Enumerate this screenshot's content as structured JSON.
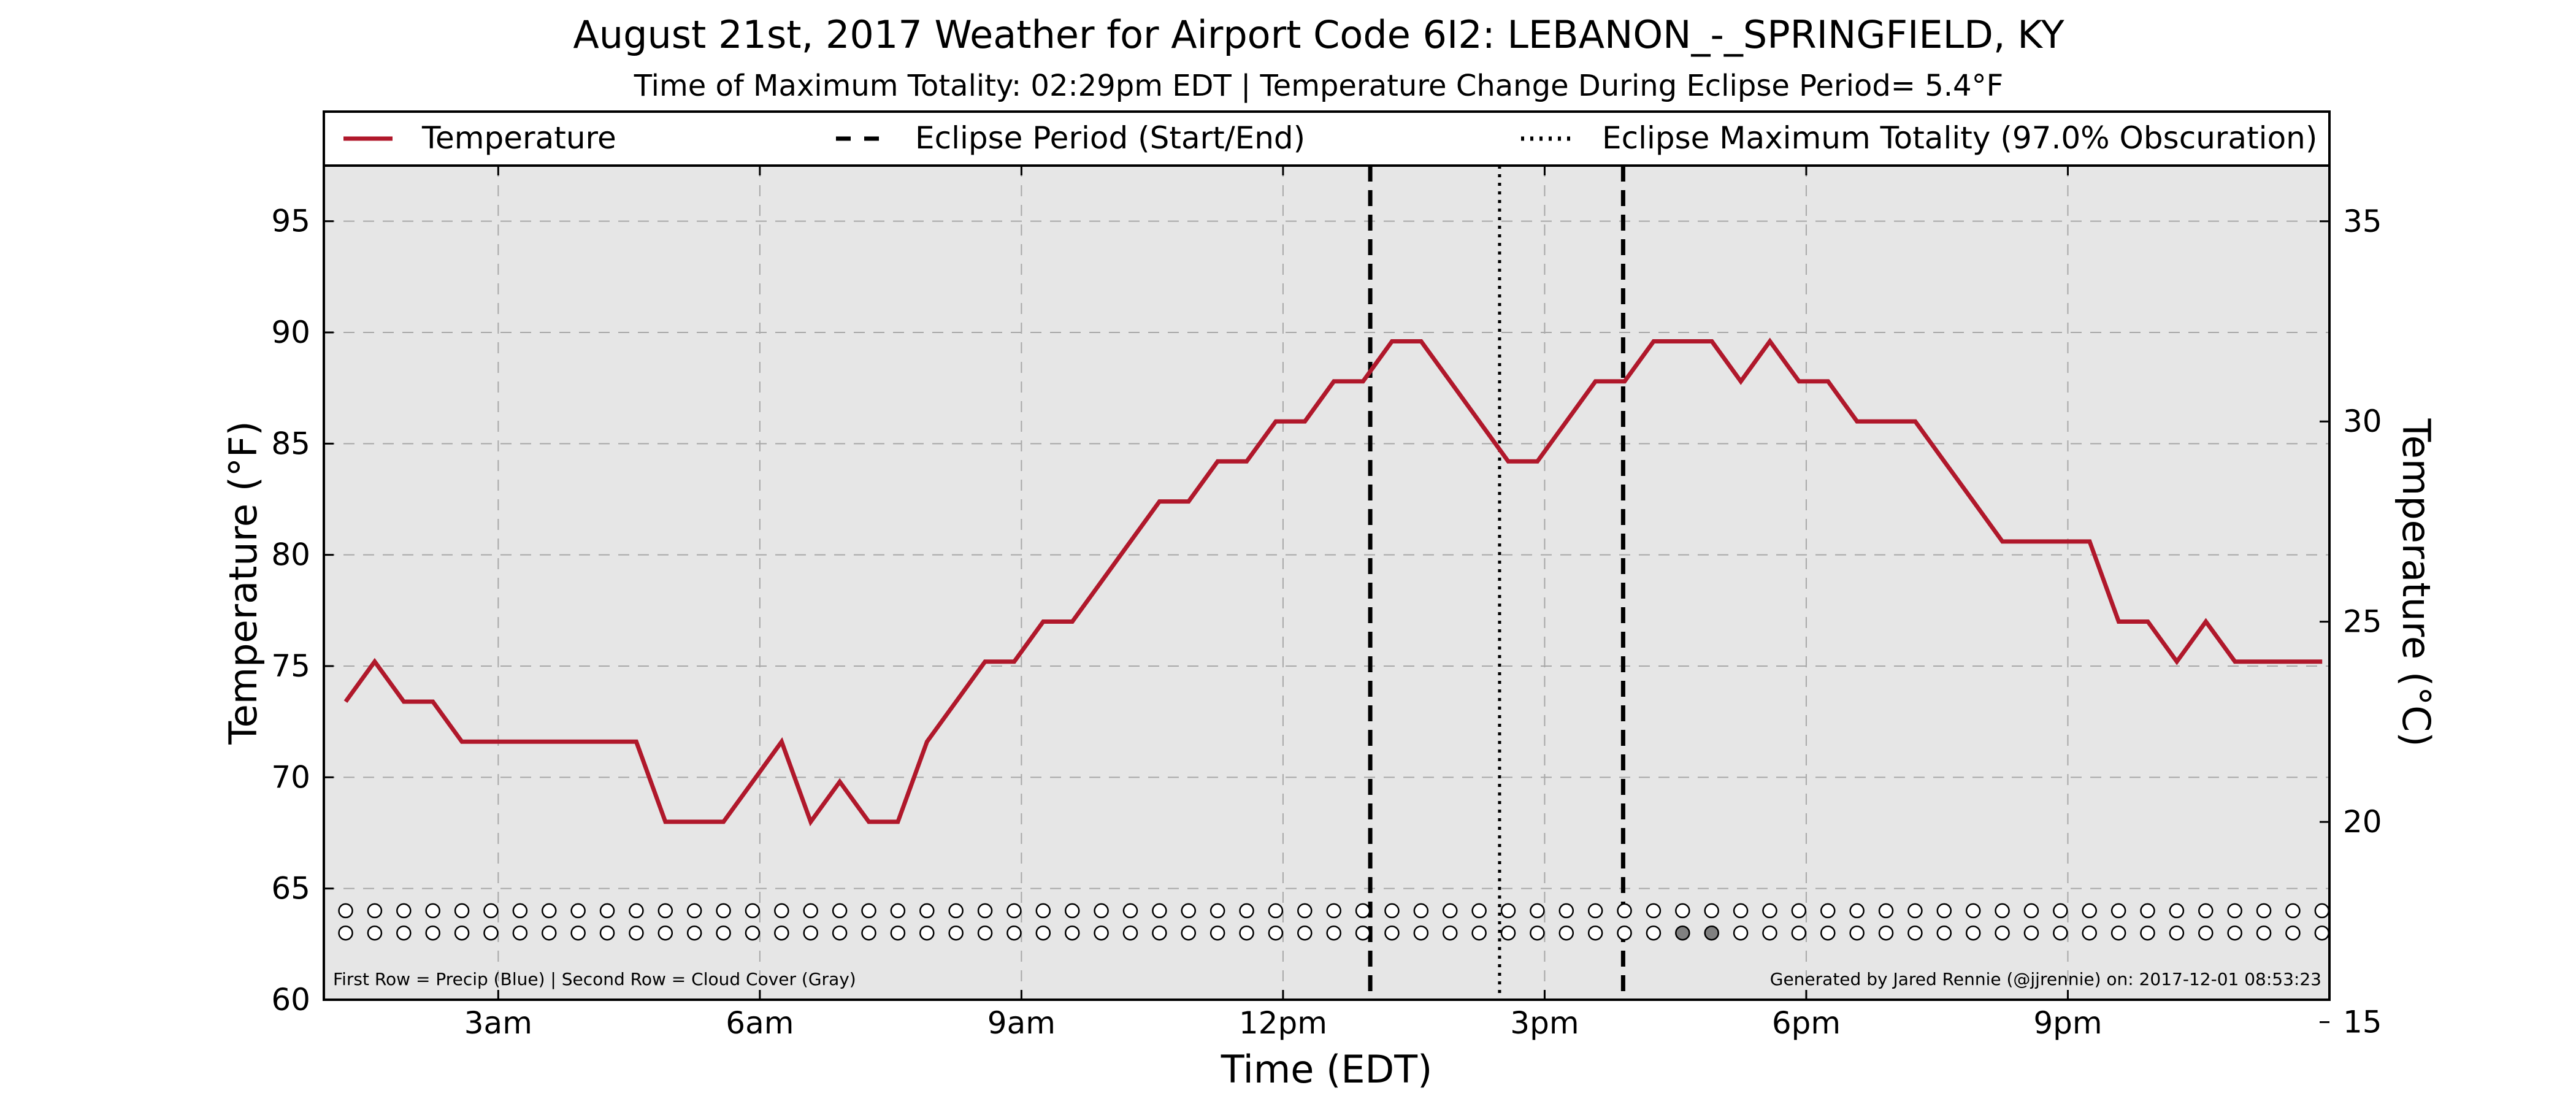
{
  "chart_data": {
    "type": "line",
    "title": "August 21st, 2017 Weather for Airport Code 6I2: LEBANON_-_SPRINGFIELD, KY",
    "subtitle": "Time of Maximum Totality: 02:29pm EDT | Temperature Change During Eclipse Period= 5.4°F",
    "xlabel": "Time (EDT)",
    "ylabel": "Temperature (°F)",
    "ylabel_right": "Temperature (°C)",
    "xlim": [
      1.0,
      24.0
    ],
    "ylim": [
      60,
      97.5
    ],
    "ylim_right": [
      15.56,
      36.39
    ],
    "x_ticks": [
      {
        "x": 3,
        "label": "3am"
      },
      {
        "x": 6,
        "label": "6am"
      },
      {
        "x": 9,
        "label": "9am"
      },
      {
        "x": 12,
        "label": "12pm"
      },
      {
        "x": 15,
        "label": "3pm"
      },
      {
        "x": 18,
        "label": "6pm"
      },
      {
        "x": 21,
        "label": "9pm"
      }
    ],
    "y_ticks": [
      60,
      65,
      70,
      75,
      80,
      85,
      90,
      95
    ],
    "y_ticks_right": [
      15,
      20,
      25,
      30,
      35
    ],
    "grid": true,
    "legend_position": "top",
    "legend": [
      {
        "label": "Temperature",
        "style": "solid"
      },
      {
        "label": "Eclipse Period (Start/End)",
        "style": "dashed"
      },
      {
        "label": "Eclipse Maximum Totality (97.0% Obscuration)",
        "style": "dotted"
      }
    ],
    "series": [
      {
        "name": "Temperature",
        "color": "#b0182b",
        "x": [
          1.25,
          1.583,
          1.917,
          2.25,
          2.583,
          2.917,
          3.25,
          3.583,
          3.917,
          4.25,
          4.583,
          4.917,
          5.25,
          5.583,
          5.917,
          6.25,
          6.583,
          6.917,
          7.25,
          7.583,
          7.917,
          8.25,
          8.583,
          8.917,
          9.25,
          9.583,
          9.917,
          10.25,
          10.583,
          10.917,
          11.25,
          11.583,
          11.917,
          12.25,
          12.583,
          12.917,
          13.25,
          13.583,
          13.917,
          14.25,
          14.583,
          14.917,
          15.25,
          15.583,
          15.917,
          16.25,
          16.583,
          16.917,
          17.25,
          17.583,
          17.917,
          18.25,
          18.583,
          18.917,
          19.25,
          19.583,
          19.917,
          20.25,
          20.583,
          20.917,
          21.25,
          21.583,
          21.917,
          22.25,
          22.583,
          22.917,
          23.25,
          23.583,
          23.917
        ],
        "values": [
          73.4,
          75.2,
          73.4,
          73.4,
          71.6,
          71.6,
          71.6,
          71.6,
          71.6,
          71.6,
          71.6,
          68.0,
          68.0,
          68.0,
          69.8,
          71.6,
          68.0,
          69.8,
          68.0,
          68.0,
          71.6,
          73.4,
          75.2,
          75.2,
          77.0,
          77.0,
          78.8,
          80.6,
          82.4,
          82.4,
          84.2,
          84.2,
          86.0,
          86.0,
          87.8,
          87.8,
          89.6,
          89.6,
          87.8,
          86.0,
          84.2,
          84.2,
          86.0,
          87.8,
          87.8,
          89.6,
          89.6,
          89.6,
          87.8,
          89.6,
          87.8,
          87.8,
          86.0,
          86.0,
          86.0,
          84.2,
          82.4,
          80.6,
          80.6,
          80.6,
          80.6,
          77.0,
          77.0,
          75.2,
          77.0,
          75.2,
          75.2,
          75.2,
          75.2
        ]
      }
    ],
    "eclipse_start": 13.0,
    "eclipse_end": 15.9,
    "eclipse_max": 14.483,
    "indicator_rows": {
      "y": [
        64,
        63
      ],
      "x_start": 1.25,
      "x_step": 0.3333,
      "count": 69,
      "filled_cloud_x": [
        16.583,
        16.917
      ]
    },
    "footnote_left": "First Row = Precip (Blue) | Second Row = Cloud Cover (Gray)",
    "footnote_right": "Generated by Jared Rennie (@jjrennie) on: 2017-12-01 08:53:23"
  },
  "colors": {
    "temperature_line": "#b0182b",
    "plot_background": "#e6e6e6",
    "grid": "#a8a8a8",
    "cloud_fill": "#808080"
  }
}
